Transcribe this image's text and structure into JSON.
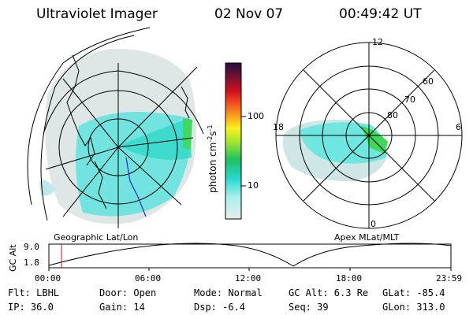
{
  "header": {
    "instrument": "Ultraviolet Imager",
    "date": "02 Nov 07",
    "time": "00:49:42 UT"
  },
  "left_panel": {
    "label": "Geographic Lat/Lon"
  },
  "right_panel": {
    "label": "Apex MLat/MLT",
    "mlt_labels": {
      "top": "12",
      "left": "18",
      "right": "6",
      "bottom": "0"
    },
    "lat_labels": [
      "60",
      "70",
      "80"
    ]
  },
  "colorbar": {
    "unit": "photon cm",
    "unit_exp1": "-2",
    "unit_mid": "s",
    "unit_exp2": "-1",
    "ticks": [
      "100",
      "10"
    ]
  },
  "altitude_plot": {
    "ylabel": "GC Alt",
    "y_ticks": [
      "9.0",
      "1.8"
    ],
    "x_ticks": [
      "00:00",
      "06:00",
      "12:00",
      "18:00",
      "23:59"
    ],
    "current_marker_color": "#ff0000"
  },
  "info": {
    "filter": "Flt: LBHL",
    "ip": "IP: 36.0",
    "door": "Door: Open",
    "gain": "Gain: 14",
    "mode": "Mode: Normal",
    "dsp": "Dsp:   -6.4",
    "gc_alt": "GC Alt: 6.3 Re",
    "seq": "Seq: 39",
    "glat": "GLat: -85.4",
    "glon": "GLon: 313.0"
  }
}
